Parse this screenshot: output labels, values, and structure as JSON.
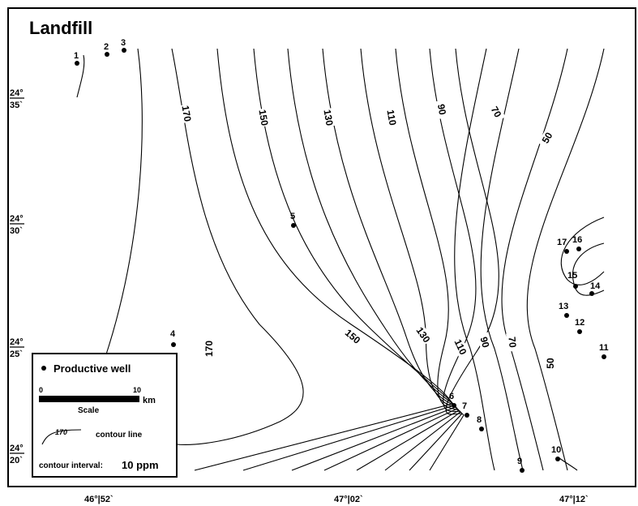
{
  "title": "Landfill",
  "wells": [
    "1",
    "2",
    "3",
    "4",
    "5",
    "6",
    "7",
    "8",
    "9",
    "10",
    "11",
    "12",
    "13",
    "14",
    "15",
    "16",
    "17"
  ],
  "contour_labels": [
    "170",
    "150",
    "130",
    "110",
    "90",
    "70",
    "50",
    "170",
    "150",
    "130",
    "110",
    "90",
    "70",
    "50"
  ],
  "latitudes": [
    {
      "deg": "24°",
      "min": "35`"
    },
    {
      "deg": "24°",
      "min": "30`"
    },
    {
      "deg": "24°",
      "min": "25`"
    },
    {
      "deg": "24°",
      "min": "20`"
    }
  ],
  "longitudes": [
    "46°|52`",
    "47°|02`",
    "47°|12`"
  ],
  "legend": {
    "well": "Productive well",
    "scale_start": "0",
    "scale_end": "10",
    "scale_unit": "km",
    "scale_label": "Scale",
    "contour_sample": "170",
    "contour_text": "contour line",
    "interval_label": "contour interval:",
    "interval_value": "10 ppm"
  }
}
